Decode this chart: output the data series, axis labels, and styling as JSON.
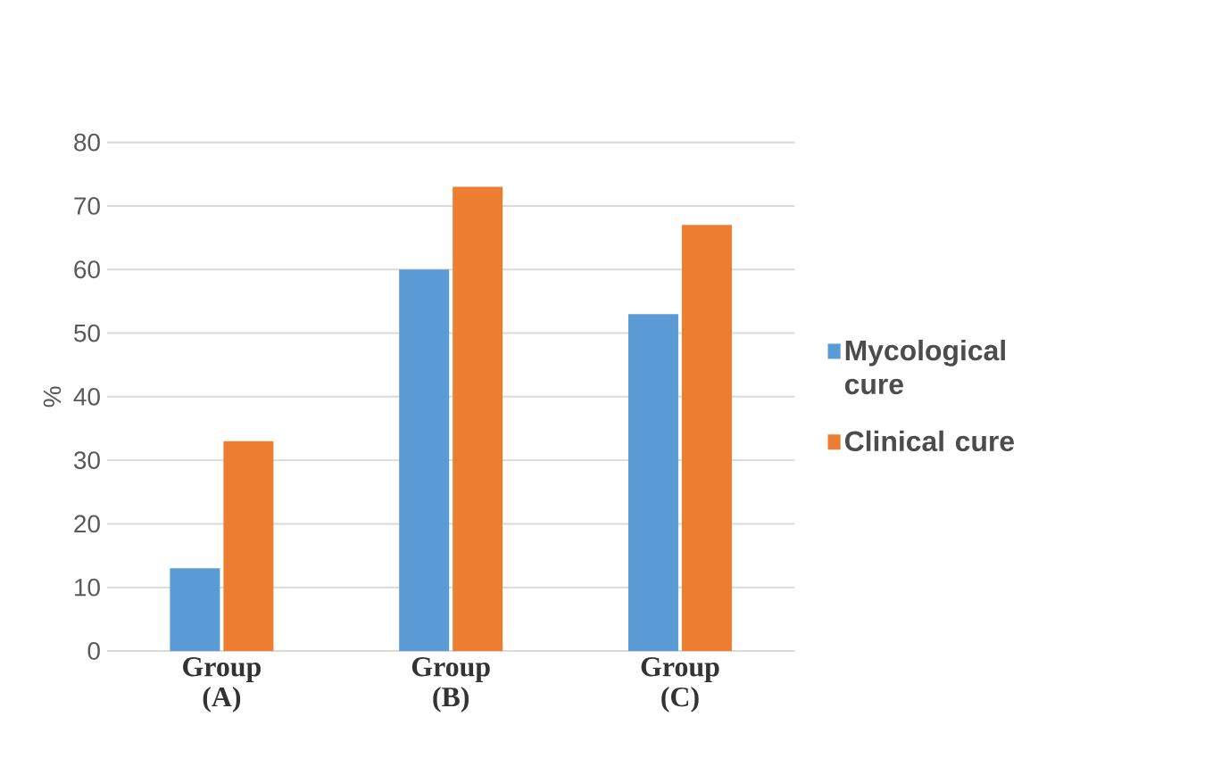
{
  "chart_data": {
    "type": "bar",
    "ylabel": "%",
    "categories": [
      "Group (A)",
      "Group (B)",
      "Group (C)"
    ],
    "series": [
      {
        "name": "Mycological cure",
        "color": "#5b9bd5",
        "values": [
          13,
          60,
          53
        ]
      },
      {
        "name": "Clinical cure",
        "color": "#ed7d31",
        "values": [
          33,
          73,
          67
        ]
      }
    ],
    "ylim": [
      0,
      80
    ],
    "yticks": [
      0,
      10,
      20,
      30,
      40,
      50,
      60,
      70,
      80
    ],
    "grid": "y",
    "legend": "right"
  }
}
